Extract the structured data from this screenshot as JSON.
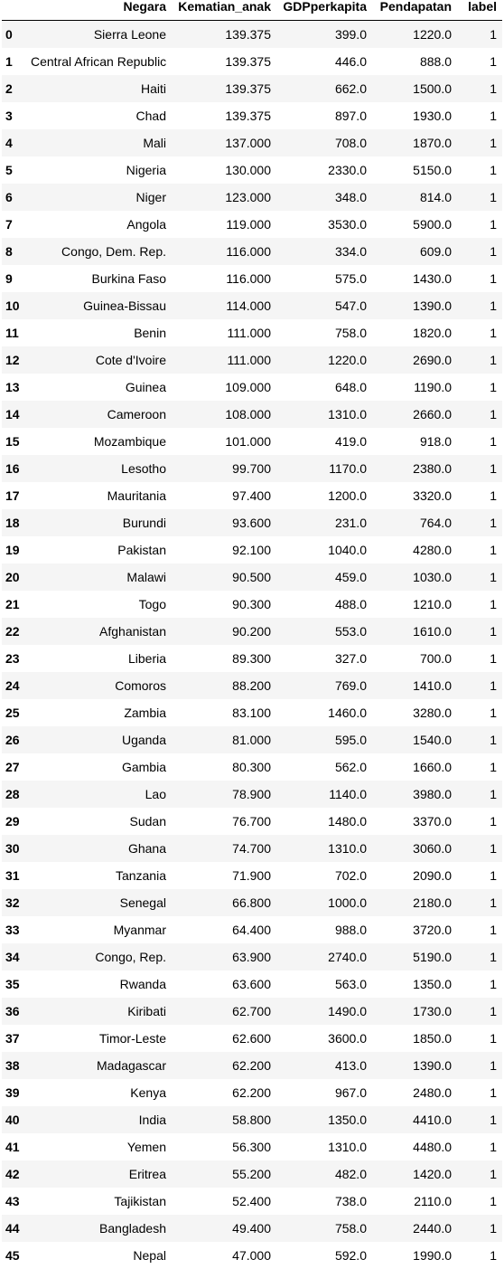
{
  "table": {
    "columns": [
      "",
      "Negara",
      "Kematian_anak",
      "GDPperkapita",
      "Pendapatan",
      "label"
    ],
    "rows": [
      [
        "0",
        "Sierra Leone",
        "139.375",
        "399.0",
        "1220.0",
        "1"
      ],
      [
        "1",
        "Central African Republic",
        "139.375",
        "446.0",
        "888.0",
        "1"
      ],
      [
        "2",
        "Haiti",
        "139.375",
        "662.0",
        "1500.0",
        "1"
      ],
      [
        "3",
        "Chad",
        "139.375",
        "897.0",
        "1930.0",
        "1"
      ],
      [
        "4",
        "Mali",
        "137.000",
        "708.0",
        "1870.0",
        "1"
      ],
      [
        "5",
        "Nigeria",
        "130.000",
        "2330.0",
        "5150.0",
        "1"
      ],
      [
        "6",
        "Niger",
        "123.000",
        "348.0",
        "814.0",
        "1"
      ],
      [
        "7",
        "Angola",
        "119.000",
        "3530.0",
        "5900.0",
        "1"
      ],
      [
        "8",
        "Congo, Dem. Rep.",
        "116.000",
        "334.0",
        "609.0",
        "1"
      ],
      [
        "9",
        "Burkina Faso",
        "116.000",
        "575.0",
        "1430.0",
        "1"
      ],
      [
        "10",
        "Guinea-Bissau",
        "114.000",
        "547.0",
        "1390.0",
        "1"
      ],
      [
        "11",
        "Benin",
        "111.000",
        "758.0",
        "1820.0",
        "1"
      ],
      [
        "12",
        "Cote d'Ivoire",
        "111.000",
        "1220.0",
        "2690.0",
        "1"
      ],
      [
        "13",
        "Guinea",
        "109.000",
        "648.0",
        "1190.0",
        "1"
      ],
      [
        "14",
        "Cameroon",
        "108.000",
        "1310.0",
        "2660.0",
        "1"
      ],
      [
        "15",
        "Mozambique",
        "101.000",
        "419.0",
        "918.0",
        "1"
      ],
      [
        "16",
        "Lesotho",
        "99.700",
        "1170.0",
        "2380.0",
        "1"
      ],
      [
        "17",
        "Mauritania",
        "97.400",
        "1200.0",
        "3320.0",
        "1"
      ],
      [
        "18",
        "Burundi",
        "93.600",
        "231.0",
        "764.0",
        "1"
      ],
      [
        "19",
        "Pakistan",
        "92.100",
        "1040.0",
        "4280.0",
        "1"
      ],
      [
        "20",
        "Malawi",
        "90.500",
        "459.0",
        "1030.0",
        "1"
      ],
      [
        "21",
        "Togo",
        "90.300",
        "488.0",
        "1210.0",
        "1"
      ],
      [
        "22",
        "Afghanistan",
        "90.200",
        "553.0",
        "1610.0",
        "1"
      ],
      [
        "23",
        "Liberia",
        "89.300",
        "327.0",
        "700.0",
        "1"
      ],
      [
        "24",
        "Comoros",
        "88.200",
        "769.0",
        "1410.0",
        "1"
      ],
      [
        "25",
        "Zambia",
        "83.100",
        "1460.0",
        "3280.0",
        "1"
      ],
      [
        "26",
        "Uganda",
        "81.000",
        "595.0",
        "1540.0",
        "1"
      ],
      [
        "27",
        "Gambia",
        "80.300",
        "562.0",
        "1660.0",
        "1"
      ],
      [
        "28",
        "Lao",
        "78.900",
        "1140.0",
        "3980.0",
        "1"
      ],
      [
        "29",
        "Sudan",
        "76.700",
        "1480.0",
        "3370.0",
        "1"
      ],
      [
        "30",
        "Ghana",
        "74.700",
        "1310.0",
        "3060.0",
        "1"
      ],
      [
        "31",
        "Tanzania",
        "71.900",
        "702.0",
        "2090.0",
        "1"
      ],
      [
        "32",
        "Senegal",
        "66.800",
        "1000.0",
        "2180.0",
        "1"
      ],
      [
        "33",
        "Myanmar",
        "64.400",
        "988.0",
        "3720.0",
        "1"
      ],
      [
        "34",
        "Congo, Rep.",
        "63.900",
        "2740.0",
        "5190.0",
        "1"
      ],
      [
        "35",
        "Rwanda",
        "63.600",
        "563.0",
        "1350.0",
        "1"
      ],
      [
        "36",
        "Kiribati",
        "62.700",
        "1490.0",
        "1730.0",
        "1"
      ],
      [
        "37",
        "Timor-Leste",
        "62.600",
        "3600.0",
        "1850.0",
        "1"
      ],
      [
        "38",
        "Madagascar",
        "62.200",
        "413.0",
        "1390.0",
        "1"
      ],
      [
        "39",
        "Kenya",
        "62.200",
        "967.0",
        "2480.0",
        "1"
      ],
      [
        "40",
        "India",
        "58.800",
        "1350.0",
        "4410.0",
        "1"
      ],
      [
        "41",
        "Yemen",
        "56.300",
        "1310.0",
        "4480.0",
        "1"
      ],
      [
        "42",
        "Eritrea",
        "55.200",
        "482.0",
        "1420.0",
        "1"
      ],
      [
        "43",
        "Tajikistan",
        "52.400",
        "738.0",
        "2110.0",
        "1"
      ],
      [
        "44",
        "Bangladesh",
        "49.400",
        "758.0",
        "2440.0",
        "1"
      ],
      [
        "45",
        "Nepal",
        "47.000",
        "592.0",
        "1990.0",
        "1"
      ]
    ]
  }
}
